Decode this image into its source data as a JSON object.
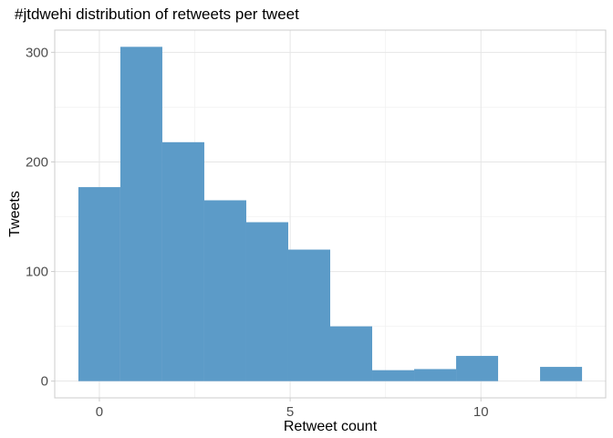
{
  "chart_data": {
    "type": "bar",
    "title": "#jtdwehi distribution of retweets per tweet",
    "xlabel": "Retweet count",
    "ylabel": "Tweets",
    "bin_width": 1.1,
    "bins": [
      {
        "x_start": -0.55,
        "x_end": 0.55,
        "count": 177
      },
      {
        "x_start": 0.55,
        "x_end": 1.65,
        "count": 305
      },
      {
        "x_start": 1.65,
        "x_end": 2.75,
        "count": 218
      },
      {
        "x_start": 2.75,
        "x_end": 3.85,
        "count": 165
      },
      {
        "x_start": 3.85,
        "x_end": 4.95,
        "count": 145
      },
      {
        "x_start": 4.95,
        "x_end": 6.05,
        "count": 120
      },
      {
        "x_start": 6.05,
        "x_end": 7.15,
        "count": 50
      },
      {
        "x_start": 7.15,
        "x_end": 8.25,
        "count": 10
      },
      {
        "x_start": 8.25,
        "x_end": 9.35,
        "count": 11
      },
      {
        "x_start": 9.35,
        "x_end": 10.45,
        "count": 23
      },
      {
        "x_start": 10.45,
        "x_end": 11.55,
        "count": 0
      },
      {
        "x_start": 11.55,
        "x_end": 12.65,
        "count": 13
      }
    ],
    "xlim": [
      -1.17,
      13.27
    ],
    "ylim": [
      -15.25,
      320.25
    ],
    "x_ticks": [
      0,
      5,
      10
    ],
    "x_tick_labels": [
      "0",
      "5",
      "10"
    ],
    "y_ticks": [
      0,
      100,
      200,
      300
    ],
    "y_tick_labels": [
      "0",
      "100",
      "200",
      "300"
    ],
    "bar_color": "#5c9bc8",
    "grid": true,
    "legend": "none"
  }
}
